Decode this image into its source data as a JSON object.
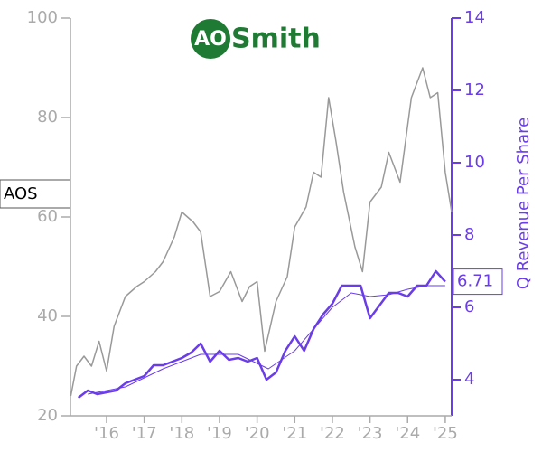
{
  "chart_data": {
    "type": "line",
    "logo": {
      "mark": "AO",
      "word": "Smith"
    },
    "ticker": "AOS",
    "y2_label": "Q Revenue Per Share",
    "xlim": [
      2015.04,
      2025.17
    ],
    "xticks": [
      {
        "value": 2016,
        "label": "'16"
      },
      {
        "value": 2017,
        "label": "'17"
      },
      {
        "value": 2018,
        "label": "'18"
      },
      {
        "value": 2019,
        "label": "'19"
      },
      {
        "value": 2020,
        "label": "'20"
      },
      {
        "value": 2021,
        "label": "'21"
      },
      {
        "value": 2022,
        "label": "'22"
      },
      {
        "value": 2023,
        "label": "'23"
      },
      {
        "value": 2024,
        "label": "'24"
      },
      {
        "value": 2025,
        "label": "'25"
      }
    ],
    "ylim": [
      20,
      100
    ],
    "yticks": [
      20,
      40,
      60,
      80,
      100
    ],
    "y2lim": [
      3,
      14
    ],
    "y2ticks": [
      4,
      6,
      8,
      10,
      12,
      14
    ],
    "series": [
      {
        "color": "#999999",
        "axis": "y",
        "x": [
          2015.05,
          2015.2,
          2015.4,
          2015.6,
          2015.8,
          2016.0,
          2016.2,
          2016.5,
          2016.8,
          2017.0,
          2017.3,
          2017.5,
          2017.8,
          2018.0,
          2018.3,
          2018.5,
          2018.75,
          2019.0,
          2019.3,
          2019.6,
          2019.8,
          2020.0,
          2020.2,
          2020.5,
          2020.8,
          2021.0,
          2021.3,
          2021.5,
          2021.7,
          2021.9,
          2022.1,
          2022.3,
          2022.6,
          2022.8,
          2023.0,
          2023.3,
          2023.5,
          2023.8,
          2024.1,
          2024.4,
          2024.6,
          2024.8,
          2025.0,
          2025.17
        ],
        "values": [
          24,
          30,
          32,
          30,
          35,
          29,
          38,
          44,
          46,
          47,
          49,
          51,
          56,
          61,
          59,
          57,
          44,
          45,
          49,
          43,
          46,
          47,
          33,
          43,
          48,
          58,
          62,
          69,
          68,
          84,
          75,
          65,
          54,
          49,
          63,
          66,
          73,
          67,
          84,
          90,
          84,
          85,
          69,
          61
        ]
      },
      {
        "color": "#6a3de8",
        "axis": "y2",
        "x": [
          2015.25,
          2015.5,
          2015.75,
          2016.0,
          2016.25,
          2016.5,
          2016.75,
          2017.0,
          2017.25,
          2017.5,
          2017.75,
          2018.0,
          2018.25,
          2018.5,
          2018.75,
          2019.0,
          2019.25,
          2019.5,
          2019.75,
          2020.0,
          2020.25,
          2020.5,
          2020.75,
          2021.0,
          2021.25,
          2021.5,
          2021.75,
          2022.0,
          2022.25,
          2022.5,
          2022.75,
          2023.0,
          2023.25,
          2023.5,
          2023.75,
          2024.0,
          2024.25,
          2024.5,
          2024.75,
          2025.0
        ],
        "values": [
          3.5,
          3.7,
          3.6,
          3.65,
          3.7,
          3.9,
          4.0,
          4.1,
          4.4,
          4.4,
          4.5,
          4.6,
          4.75,
          5.0,
          4.5,
          4.8,
          4.55,
          4.6,
          4.5,
          4.6,
          4.0,
          4.2,
          4.8,
          5.2,
          4.8,
          5.4,
          5.8,
          6.1,
          6.6,
          6.6,
          6.6,
          5.7,
          6.05,
          6.4,
          6.4,
          6.3,
          6.6,
          6.6,
          7.0,
          6.71
        ],
        "value_labels": [
          null,
          null,
          null,
          null,
          null,
          null,
          null,
          null,
          null,
          null,
          null,
          null,
          null,
          null,
          null,
          null,
          null,
          null,
          null,
          null,
          null,
          null,
          null,
          null,
          null,
          null,
          null,
          null,
          null,
          null,
          null,
          null,
          null,
          null,
          null,
          null,
          null,
          null,
          null,
          "6.71"
        ]
      },
      {
        "color": "#6a3de8",
        "axis": "y2",
        "x": [
          2015.5,
          2016.5,
          2017.5,
          2018.5,
          2019.5,
          2020.3,
          2021.0,
          2021.5,
          2022.0,
          2022.5,
          2023.0,
          2023.5,
          2024.0,
          2024.5,
          2025.0
        ],
        "values": [
          3.6,
          3.8,
          4.3,
          4.7,
          4.7,
          4.3,
          4.8,
          5.4,
          6.0,
          6.4,
          6.3,
          6.35,
          6.5,
          6.6,
          6.6
        ]
      }
    ]
  }
}
